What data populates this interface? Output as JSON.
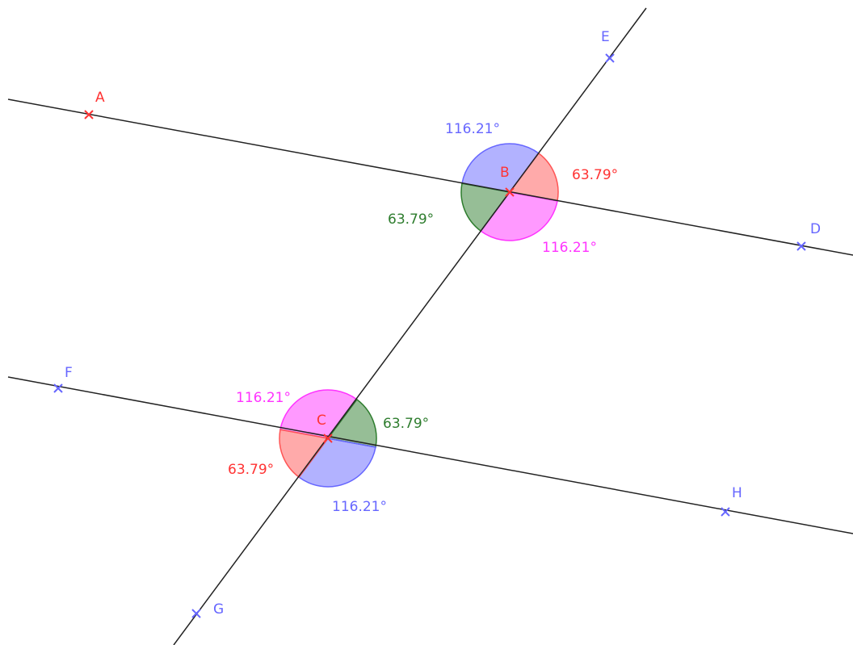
{
  "points": [
    {
      "label": "A"
    },
    {
      "label": "B"
    },
    {
      "label": "C"
    },
    {
      "label": "D"
    },
    {
      "label": "E"
    },
    {
      "label": "F"
    },
    {
      "label": "G"
    },
    {
      "label": "H"
    }
  ],
  "angles": [
    {
      "label": "116.21°"
    },
    {
      "label": "63.79°"
    },
    {
      "label": "63.79°"
    },
    {
      "label": "116.21°"
    },
    {
      "label": "116.21°"
    },
    {
      "label": "63.79°"
    },
    {
      "label": "63.79°"
    },
    {
      "label": "116.21°"
    }
  ]
}
